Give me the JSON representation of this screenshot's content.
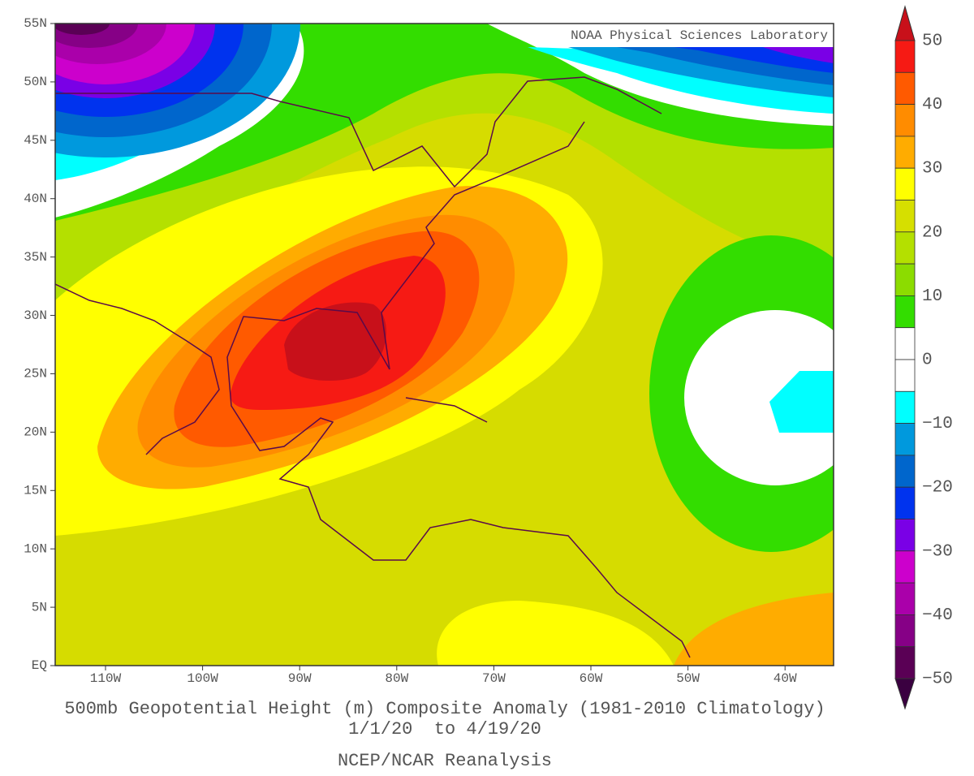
{
  "credit": "NOAA Physical Sciences Laboratory",
  "map": {
    "lat_labels": [
      "55N",
      "50N",
      "45N",
      "40N",
      "35N",
      "30N",
      "25N",
      "20N",
      "15N",
      "10N",
      "5N",
      "EQ"
    ],
    "lon_labels": [
      "110W",
      "100W",
      "90W",
      "80W",
      "70W",
      "60W",
      "50W",
      "40W"
    ]
  },
  "colorbar": {
    "labels": [
      "50",
      "40",
      "30",
      "20",
      "10",
      "0",
      "−10",
      "−20",
      "−30",
      "−40",
      "−50"
    ],
    "colors": [
      "#c8101a",
      "#f61a14",
      "#ff5a00",
      "#ff8c00",
      "#ffac00",
      "#ffff00",
      "#d6df00",
      "#b4e000",
      "#8cdc00",
      "#33dd00",
      "#ffffff",
      "#ffffff",
      "#00ffff",
      "#0099dd",
      "#0066cc",
      "#0033ee",
      "#7a00e6",
      "#cc00cc",
      "#aa00aa",
      "#860086",
      "#5a0055",
      "#3a0040"
    ]
  },
  "caption": {
    "title": "500mb Geopotential Height (m) Composite Anomaly (1981-2010 Climatology)",
    "period": "1/1/20  to 4/19/20",
    "source": "NCEP/NCAR Reanalysis"
  }
}
